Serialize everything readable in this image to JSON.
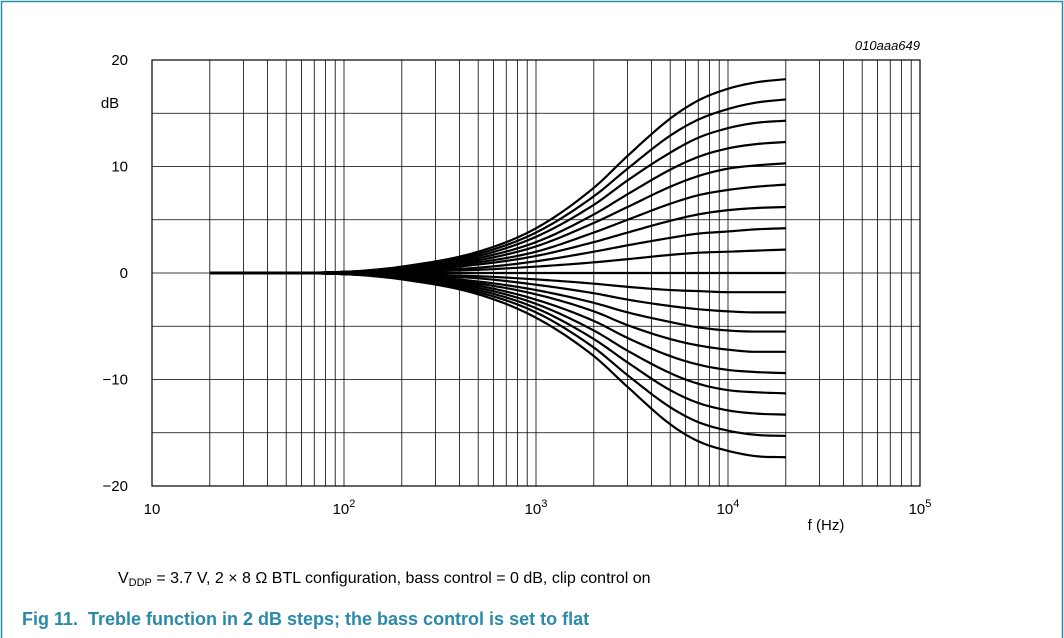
{
  "figure": {
    "id_code": "010aaa649",
    "condition": {
      "v_symbol": "V",
      "v_subscript": "DDP",
      "rest": " = 3.7 V, 2 × 8 Ω BTL configuration, bass control = 0 dB, clip control on"
    },
    "number": "Fig 11.",
    "title": "Treble function in 2 dB steps; the bass control is set to flat",
    "colors": {
      "title": "#2a8aa8",
      "frame": "#2a8aa8",
      "curves": "#000000",
      "grid": "#000000"
    }
  },
  "chart_data": {
    "type": "line",
    "x_scale": "log",
    "xlim": [
      10,
      100000
    ],
    "ylim": [
      -20,
      20
    ],
    "xlabel": "f (Hz)",
    "ylabel": "dB",
    "x_ticks": [
      {
        "value": 10,
        "base": "10",
        "exp": ""
      },
      {
        "value": 100,
        "base": "10",
        "exp": "2"
      },
      {
        "value": 1000,
        "base": "10",
        "exp": "3"
      },
      {
        "value": 10000,
        "base": "10",
        "exp": "4"
      },
      {
        "value": 100000,
        "base": "10",
        "exp": "5"
      }
    ],
    "y_ticks": [
      {
        "value": 20,
        "label": "20"
      },
      {
        "value": 10,
        "label": "10"
      },
      {
        "value": 0,
        "label": "0"
      },
      {
        "value": -10,
        "label": "−10"
      },
      {
        "value": -20,
        "label": "−20"
      }
    ],
    "grid": true,
    "x": [
      20,
      50,
      100,
      200,
      500,
      1000,
      2000,
      3000,
      5000,
      7000,
      10000,
      14000,
      20000
    ],
    "series": [
      {
        "values": [
          0,
          0,
          0.1,
          0.6,
          2.0,
          4.2,
          8.0,
          11.0,
          14.5,
          16.2,
          17.3,
          17.9,
          18.2
        ]
      },
      {
        "values": [
          0,
          0,
          0.1,
          0.5,
          1.8,
          3.8,
          7.2,
          9.8,
          12.9,
          14.4,
          15.4,
          16.0,
          16.3
        ]
      },
      {
        "values": [
          0,
          0,
          0.1,
          0.5,
          1.6,
          3.4,
          6.4,
          8.7,
          11.3,
          12.7,
          13.6,
          14.1,
          14.3
        ]
      },
      {
        "values": [
          0,
          0,
          0.1,
          0.4,
          1.4,
          2.9,
          5.5,
          7.4,
          9.7,
          10.9,
          11.7,
          12.1,
          12.3
        ]
      },
      {
        "values": [
          0,
          0,
          0.1,
          0.4,
          1.2,
          2.5,
          4.7,
          6.2,
          8.1,
          9.1,
          9.8,
          10.1,
          10.3
        ]
      },
      {
        "values": [
          0,
          0,
          0.1,
          0.3,
          1.0,
          2.0,
          3.8,
          5.0,
          6.5,
          7.3,
          7.8,
          8.1,
          8.3
        ]
      },
      {
        "values": [
          0,
          0,
          0.1,
          0.2,
          0.8,
          1.6,
          2.9,
          3.8,
          4.9,
          5.5,
          5.9,
          6.1,
          6.2
        ]
      },
      {
        "values": [
          0,
          0,
          0,
          0.2,
          0.5,
          1.1,
          2.0,
          2.6,
          3.3,
          3.7,
          3.9,
          4.1,
          4.2
        ]
      },
      {
        "values": [
          0,
          0,
          0,
          0.1,
          0.3,
          0.6,
          1.0,
          1.3,
          1.7,
          1.9,
          2.0,
          2.1,
          2.2
        ]
      },
      {
        "values": [
          0,
          0,
          0,
          0,
          0,
          0,
          0,
          0,
          0,
          0,
          0,
          0,
          0
        ]
      },
      {
        "values": [
          0,
          0,
          0,
          -0.1,
          -0.3,
          -0.6,
          -1.0,
          -1.3,
          -1.6,
          -1.7,
          -1.8,
          -1.8,
          -1.8
        ]
      },
      {
        "values": [
          0,
          0,
          0,
          -0.2,
          -0.5,
          -1.1,
          -1.9,
          -2.5,
          -3.1,
          -3.4,
          -3.6,
          -3.7,
          -3.7
        ]
      },
      {
        "values": [
          0,
          0,
          -0.1,
          -0.2,
          -0.8,
          -1.6,
          -2.8,
          -3.7,
          -4.6,
          -5.1,
          -5.4,
          -5.5,
          -5.5
        ]
      },
      {
        "values": [
          0,
          0,
          -0.1,
          -0.3,
          -1.0,
          -2.0,
          -3.6,
          -4.9,
          -6.2,
          -6.8,
          -7.2,
          -7.4,
          -7.4
        ]
      },
      {
        "values": [
          0,
          0,
          -0.1,
          -0.4,
          -1.2,
          -2.5,
          -4.5,
          -6.1,
          -7.8,
          -8.6,
          -9.1,
          -9.3,
          -9.4
        ]
      },
      {
        "values": [
          0,
          0,
          -0.1,
          -0.4,
          -1.4,
          -2.9,
          -5.4,
          -7.3,
          -9.4,
          -10.4,
          -11.0,
          -11.2,
          -11.3
        ]
      },
      {
        "values": [
          0,
          0,
          -0.1,
          -0.5,
          -1.6,
          -3.3,
          -6.2,
          -8.4,
          -11.0,
          -12.2,
          -12.9,
          -13.2,
          -13.3
        ]
      },
      {
        "values": [
          0,
          0,
          -0.1,
          -0.5,
          -1.8,
          -3.7,
          -7.0,
          -9.6,
          -12.6,
          -14.0,
          -14.8,
          -15.2,
          -15.3
        ]
      },
      {
        "values": [
          0,
          0,
          -0.1,
          -0.6,
          -2.0,
          -4.2,
          -7.8,
          -10.7,
          -14.2,
          -15.8,
          -16.7,
          -17.2,
          -17.3
        ]
      }
    ]
  }
}
